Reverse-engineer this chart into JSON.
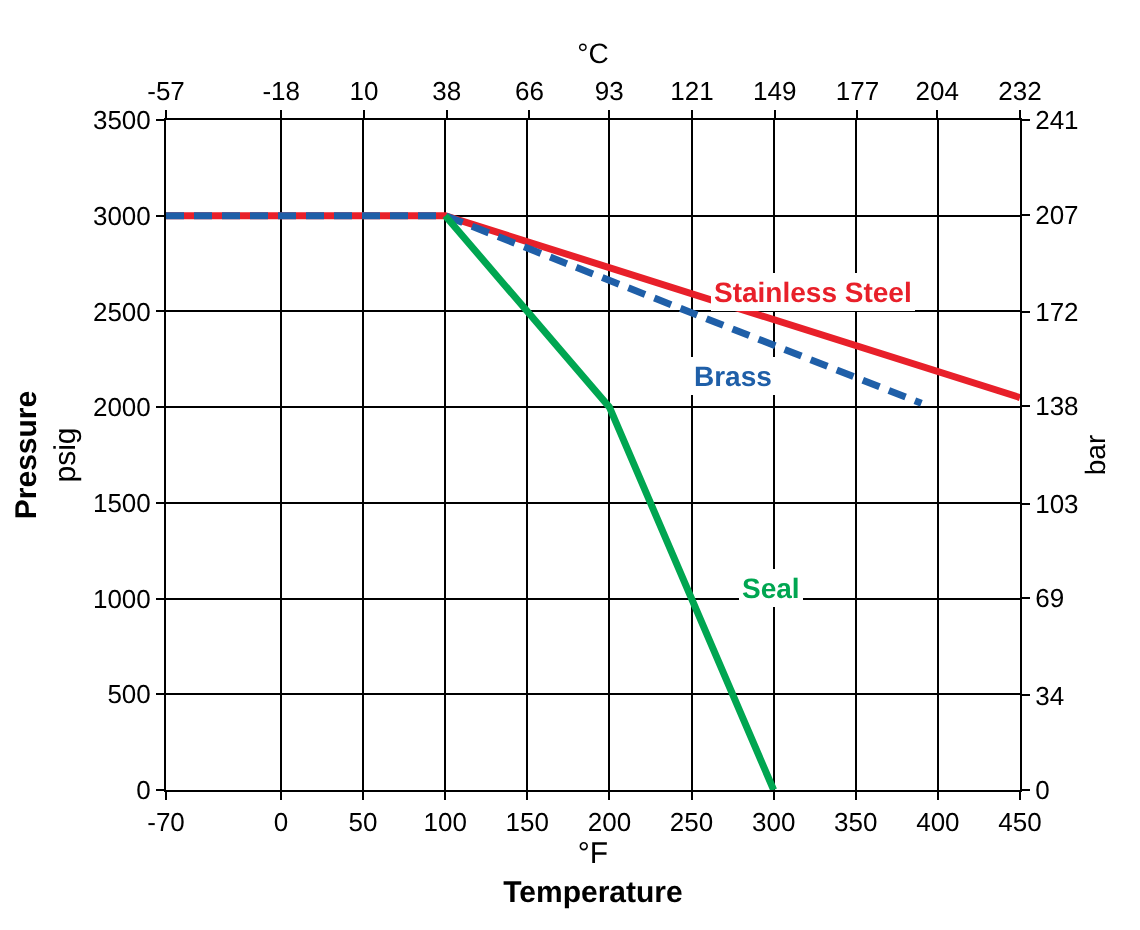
{
  "chart_data": {
    "type": "line",
    "xlabel": "°F\nTemperature",
    "ylabel": "Pressure\npsig",
    "x2label": "°C",
    "y2label": "bar",
    "xlim": [
      -70,
      450
    ],
    "xticks": [
      -70,
      0,
      50,
      100,
      150,
      200,
      250,
      300,
      350,
      400,
      450
    ],
    "x2lim": [
      -57,
      232
    ],
    "x2ticks": [
      -57,
      -18,
      10,
      38,
      66,
      93,
      121,
      149,
      177,
      204,
      232
    ],
    "ylim": [
      0,
      3500
    ],
    "yticks": [
      0,
      500,
      1000,
      1500,
      2000,
      2500,
      3000,
      3500
    ],
    "y2lim": [
      0,
      241
    ],
    "y2ticks": [
      0,
      34,
      69,
      103,
      138,
      172,
      207,
      241
    ],
    "grid": true,
    "legend": false,
    "marker": "none",
    "series": [
      {
        "name": "Stainless Steel",
        "color": "#e8202a",
        "line_style": "solid",
        "x": [
          -70,
          100,
          450
        ],
        "values": [
          3000,
          3000,
          2050
        ]
      },
      {
        "name": "Brass",
        "color": "#1f5fa8",
        "line_style": "dashed",
        "x": [
          -70,
          100,
          390
        ],
        "values": [
          3000,
          3000,
          2020
        ]
      },
      {
        "name": "Seal",
        "color": "#00a651",
        "line_style": "solid",
        "x": [
          100,
          200,
          300
        ],
        "values": [
          3000,
          2000,
          0
        ]
      }
    ]
  }
}
